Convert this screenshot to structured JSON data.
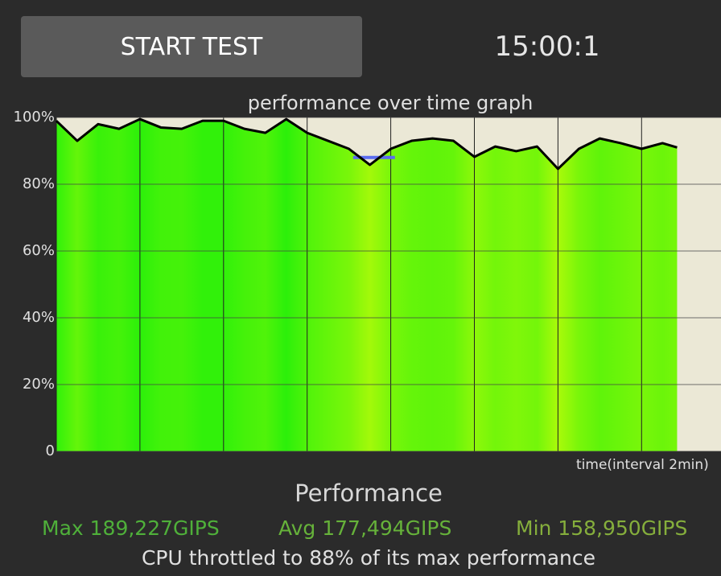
{
  "button": {
    "label": "START TEST"
  },
  "timer": "15:00:1",
  "chart_data": {
    "type": "line",
    "title": "performance over time graph",
    "x_label": "time(interval 2min)",
    "x": [
      0,
      0.5,
      1,
      1.5,
      2,
      2.5,
      3,
      3.5,
      4,
      4.5,
      5,
      5.5,
      6,
      6.5,
      7,
      7.5,
      8,
      8.5,
      9,
      9.5,
      10,
      10.5,
      11,
      11.5,
      12,
      12.5,
      13,
      13.5,
      14,
      14.5,
      14.85
    ],
    "values": [
      99,
      93,
      98,
      96.6,
      99.5,
      97,
      96.6,
      99,
      99,
      96.6,
      95.4,
      99.5,
      95.4,
      93,
      90.6,
      85.8,
      90.6,
      93,
      93.7,
      93,
      88.2,
      91.3,
      89.9,
      91.3,
      84.6,
      90.6,
      93.7,
      92.3,
      90.6,
      92.3,
      91
    ],
    "color": "#000000",
    "reference_line": {
      "value": 88,
      "x": [
        7.1,
        8.1
      ],
      "color": "#5b6cf0"
    },
    "xlim": [
      0,
      15.9
    ],
    "xticks": [
      0,
      2,
      4,
      6,
      8,
      10,
      12,
      14
    ],
    "ylim": [
      0,
      100
    ],
    "yticks": [
      0,
      {
        "value": 20,
        "label": "20%"
      },
      {
        "value": 40,
        "label": "40%"
      },
      {
        "value": 60,
        "label": "60%"
      },
      {
        "value": 80,
        "label": "80%"
      },
      {
        "value": 100,
        "label": "100%"
      }
    ],
    "grid": true
  },
  "stats": {
    "heading": "Performance",
    "max": "Max 189,227GIPS",
    "avg": "Avg 177,494GIPS",
    "min": "Min 158,950GIPS",
    "summary": "CPU throttled to 88% of its max performance"
  }
}
